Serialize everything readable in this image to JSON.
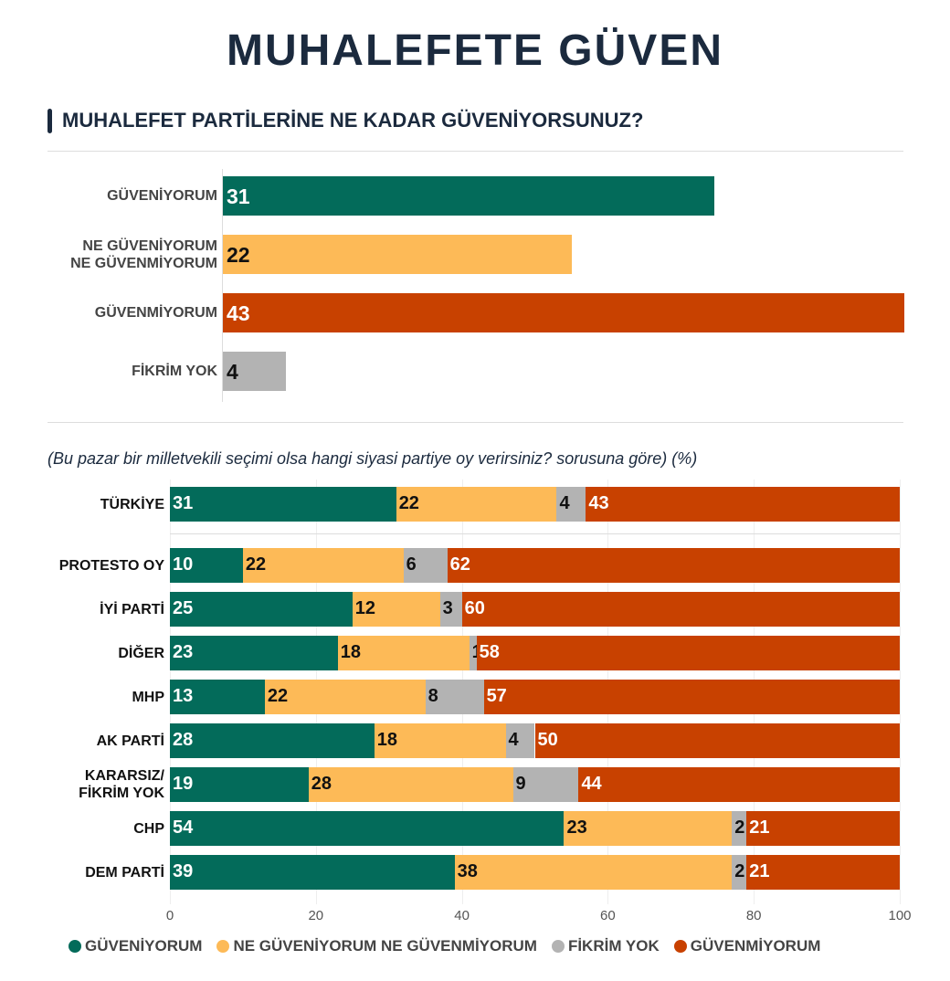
{
  "title": "MUHALEFETE GÜVEN",
  "colors": {
    "GÜVENİYORUM": "#036b5a",
    "NE GÜVENİYORUM NE GÜVENMİYORUM": "#fdba57",
    "FİKRİM YOK": "#b3b3b3",
    "GÜVENMİYORUM": "#c84100"
  },
  "chart_data": [
    {
      "type": "bar",
      "orientation": "horizontal",
      "title": "MUHALEFET PARTİLERİNE NE KADAR GÜVENİYORSUNUZ?",
      "categories": [
        "GÜVENİYORUM",
        "NE GÜVENİYORUM\nNE GÜVENMİYORUM",
        "GÜVENMİYORUM",
        "FİKRİM YOK"
      ],
      "values": [
        31,
        22,
        43,
        4
      ],
      "colors": [
        "#036b5a",
        "#fdba57",
        "#c84100",
        "#b3b3b3"
      ]
    },
    {
      "type": "bar",
      "orientation": "horizontal",
      "stacked": true,
      "subtitle": "(Bu pazar bir milletvekili seçimi olsa hangi siyasi partiye oy verirsiniz? sorusuna göre) (%)",
      "categories": [
        "TÜRKİYE",
        "PROTESTO OY",
        "İYİ PARTİ",
        "DİĞER",
        "MHP",
        "AK PARTİ",
        "KARARSIZ/\nFİKRİM YOK",
        "CHP",
        "DEM PARTİ"
      ],
      "series": [
        {
          "name": "GÜVENİYORUM",
          "color": "#036b5a",
          "values": [
            31,
            10,
            25,
            23,
            13,
            28,
            19,
            54,
            39
          ]
        },
        {
          "name": "NE GÜVENİYORUM NE GÜVENMİYORUM",
          "color": "#fdba57",
          "values": [
            22,
            22,
            12,
            18,
            22,
            18,
            28,
            23,
            38
          ]
        },
        {
          "name": "FİKRİM YOK",
          "color": "#b3b3b3",
          "values": [
            4,
            6,
            3,
            1,
            8,
            4,
            9,
            2,
            2
          ]
        },
        {
          "name": "GÜVENMİYORUM",
          "color": "#c84100",
          "values": [
            43,
            62,
            60,
            58,
            57,
            50,
            44,
            21,
            21
          ]
        }
      ],
      "xlim": [
        0,
        100
      ],
      "xticks": [
        "0",
        "20",
        "40",
        "60",
        "80",
        "100"
      ],
      "legend": "bottom"
    }
  ]
}
